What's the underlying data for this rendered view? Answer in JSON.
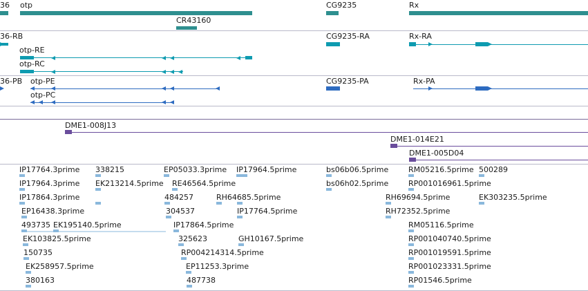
{
  "colors": {
    "gene": "#2e8f8f",
    "transcript_teal": "#0e9bb0",
    "transcript_blue": "#2d6bc0",
    "clone": "#6a4d9c",
    "est": "#8ab8dc"
  },
  "tracks": {
    "genes": [
      {
        "label": "36"
      },
      {
        "label": "otp"
      },
      {
        "label": "CR43160"
      },
      {
        "label": "CG9235"
      },
      {
        "label": "Rx"
      }
    ],
    "transcripts": [
      {
        "label": "36-RB"
      },
      {
        "label": "otp-RE"
      },
      {
        "label": "otp-RC"
      },
      {
        "label": "CG9235-RA"
      },
      {
        "label": "Rx-RA"
      }
    ],
    "proteins": [
      {
        "label": "36-PB"
      },
      {
        "label": "otp-PE"
      },
      {
        "label": "otp-PC"
      },
      {
        "label": "CG9235-PA"
      },
      {
        "label": "Rx-PA"
      }
    ],
    "clones": [
      {
        "label": "DME1-008J13"
      },
      {
        "label": "DME1-014E21"
      },
      {
        "label": "DME1-005D04"
      }
    ],
    "ests": [
      "IP17764.3prime",
      "338215",
      "EP05033.3prime",
      "IP17964.5prime",
      "bs06b06.5prime",
      "RM05216.5prime",
      "500289",
      "IP17964.3prime",
      "EK213214.5prime",
      "RE46564.5prime",
      "bs06h02.5prime",
      "RP001016961.5prime",
      "IP17864.3prime",
      "484257",
      "RH64685.5prime",
      "RH69694.5prime",
      "EK303235.5prime",
      "EP16438.3prime",
      "304537",
      "IP17764.5prime",
      "RH72352.5prime",
      "493735",
      "EK195140.5prime",
      "IP17864.5prime",
      "RM05116.5prime",
      "EK103825.5prime",
      "325623",
      "GH10167.5prime",
      "RP001040740.5prime",
      "150735",
      "RP004214314.5prime",
      "RP001019591.5prime",
      "EK258957.5prime",
      "EP11253.3prime",
      "RP001023331.5prime",
      "380163",
      "487738",
      "RP01546.5prime"
    ]
  }
}
